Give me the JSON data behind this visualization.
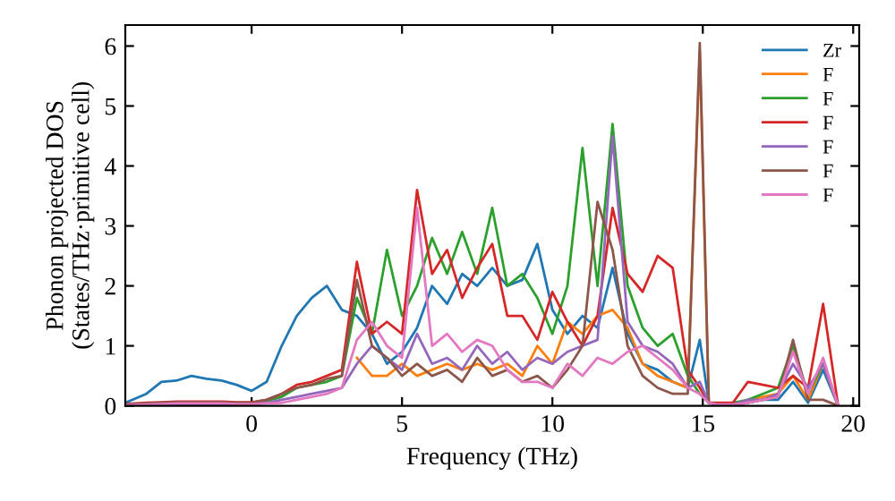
{
  "chart_data": {
    "type": "line",
    "xlabel": "Frequency (THz)",
    "ylabel": "Phonon projected DOS\n(States/THz·primitive cell)",
    "x": [
      -4.2,
      -3.5,
      -3,
      -2.5,
      -2,
      -1.5,
      -1,
      -0.5,
      0,
      0.5,
      1,
      1.5,
      2,
      2.5,
      3,
      3.5,
      4,
      4.5,
      5,
      5.5,
      6,
      6.5,
      7,
      7.5,
      8,
      8.5,
      9,
      9.5,
      10,
      10.5,
      11,
      11.5,
      12,
      12.5,
      13,
      13.5,
      14,
      14.5,
      14.9,
      15.2,
      15.5,
      16,
      16.5,
      17,
      17.5,
      18,
      18.5,
      19,
      19.5
    ],
    "xlim": [
      -4.2,
      20.2
    ],
    "ylim": [
      0,
      6.35
    ],
    "xticks": [
      0,
      5,
      10,
      15,
      20
    ],
    "yticks": [
      0,
      1,
      2,
      3,
      4,
      5,
      6
    ],
    "grid": false,
    "legend": "top right",
    "line_style": "solid",
    "marker": "none",
    "series": [
      {
        "name": "Zr",
        "color": "#1f77b4",
        "values": [
          0.05,
          0.2,
          0.4,
          0.42,
          0.5,
          0.45,
          0.42,
          0.35,
          0.25,
          0.4,
          1.0,
          1.5,
          1.8,
          2.0,
          1.6,
          1.5,
          1.2,
          0.7,
          0.9,
          1.3,
          2.0,
          1.7,
          2.2,
          2.0,
          2.3,
          2.0,
          2.1,
          2.7,
          1.6,
          1.2,
          1.5,
          1.3,
          2.3,
          1.2,
          0.7,
          0.6,
          0.4,
          0.3,
          1.1,
          0.05,
          0.02,
          0.02,
          0.05,
          0.1,
          0.1,
          0.4,
          0.05,
          0.6,
          0
        ]
      },
      {
        "name": "F",
        "color": "#ff7f0e",
        "values": [
          null,
          null,
          null,
          null,
          null,
          null,
          null,
          null,
          null,
          null,
          null,
          null,
          null,
          null,
          null,
          0.8,
          0.5,
          0.5,
          0.7,
          0.5,
          0.6,
          0.7,
          0.6,
          0.7,
          0.6,
          0.7,
          0.5,
          1.0,
          0.7,
          1.4,
          1.2,
          1.5,
          1.6,
          1.3,
          0.7,
          0.5,
          0.4,
          0.3,
          5.9,
          0.05,
          0.02,
          0.02,
          0.1,
          0.15,
          0.2,
          0.5,
          0.1,
          0.7,
          0
        ]
      },
      {
        "name": "F",
        "color": "#2ca02c",
        "values": [
          null,
          null,
          null,
          null,
          null,
          null,
          null,
          null,
          0.05,
          0.08,
          0.15,
          0.3,
          0.35,
          0.4,
          0.5,
          1.8,
          1.2,
          2.6,
          1.5,
          2.0,
          2.8,
          2.2,
          2.9,
          2.2,
          3.3,
          2.0,
          2.2,
          1.8,
          1.2,
          2.0,
          4.3,
          2.0,
          4.7,
          2.0,
          1.3,
          1.0,
          1.2,
          0.5,
          0.2,
          0.05,
          0.02,
          0.05,
          0.1,
          0.2,
          0.3,
          1.0,
          0.2,
          0.7,
          0
        ]
      },
      {
        "name": "F",
        "color": "#d62728",
        "values": [
          0.03,
          0.05,
          0.06,
          0.07,
          0.07,
          0.07,
          0.07,
          0.06,
          0.06,
          0.1,
          0.2,
          0.35,
          0.4,
          0.5,
          0.6,
          2.4,
          1.2,
          1.4,
          1.2,
          3.6,
          2.2,
          2.6,
          1.8,
          2.3,
          2.7,
          1.5,
          1.5,
          1.1,
          1.9,
          1.4,
          1.0,
          1.5,
          3.3,
          2.2,
          1.9,
          2.5,
          2.3,
          0.6,
          0.3,
          0.05,
          0.05,
          0.05,
          0.4,
          0.35,
          0.3,
          0.5,
          0.3,
          1.7,
          0
        ]
      },
      {
        "name": "F",
        "color": "#9467bd",
        "values": [
          0.01,
          0.02,
          0.02,
          0.03,
          0.03,
          0.03,
          0.03,
          0.03,
          0.03,
          0.05,
          0.1,
          0.15,
          0.2,
          0.25,
          0.3,
          0.7,
          1.0,
          0.8,
          0.6,
          1.2,
          0.7,
          0.8,
          0.6,
          1.0,
          0.7,
          0.9,
          0.6,
          0.8,
          0.7,
          0.9,
          1.0,
          1.1,
          4.5,
          1.4,
          1.0,
          0.9,
          0.7,
          0.3,
          0.4,
          0.05,
          0.02,
          0.02,
          0.1,
          0.1,
          0.2,
          0.7,
          0.3,
          0.7,
          0
        ]
      },
      {
        "name": "F",
        "color": "#8c564b",
        "values": [
          0.02,
          0.04,
          0.05,
          0.06,
          0.06,
          0.06,
          0.06,
          0.05,
          0.05,
          0.1,
          0.2,
          0.3,
          0.35,
          0.45,
          0.5,
          2.1,
          1.0,
          0.8,
          0.5,
          0.7,
          0.5,
          0.6,
          0.4,
          0.8,
          0.5,
          0.6,
          0.4,
          0.5,
          0.3,
          0.6,
          1.0,
          3.4,
          2.6,
          1.0,
          0.5,
          0.3,
          0.2,
          0.2,
          6.05,
          0.05,
          0.02,
          0.02,
          0.05,
          0.1,
          0.15,
          1.1,
          0.1,
          0.1,
          0
        ]
      },
      {
        "name": "F",
        "color": "#e377c2",
        "values": [
          0.01,
          0.02,
          0.03,
          0.04,
          0.04,
          0.04,
          0.04,
          0.03,
          0.03,
          0.04,
          0.05,
          0.1,
          0.15,
          0.2,
          0.3,
          1.1,
          1.4,
          1.0,
          0.8,
          3.3,
          1.0,
          1.2,
          0.9,
          1.1,
          1.0,
          0.6,
          0.4,
          0.4,
          0.3,
          0.7,
          0.5,
          0.8,
          0.7,
          0.9,
          1.0,
          0.8,
          0.6,
          0.3,
          0.2,
          0.05,
          0.02,
          0.02,
          0.05,
          0.1,
          0.15,
          0.9,
          0.2,
          0.8,
          0
        ]
      }
    ]
  }
}
